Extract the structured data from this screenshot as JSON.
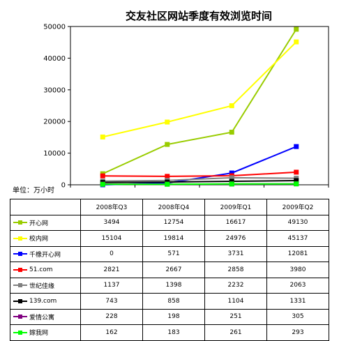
{
  "chart_data": {
    "type": "line",
    "title": "交友社区网站季度有效浏览时间",
    "unit_label": "单位：万小时",
    "categories": [
      "2008年Q3",
      "2008年Q4",
      "2009年Q1",
      "2009年Q2"
    ],
    "ylim": [
      0,
      50000
    ],
    "yticks": [
      0,
      10000,
      20000,
      30000,
      40000,
      50000
    ],
    "grid": false,
    "legend_placement": "data-table-left",
    "series": [
      {
        "name": "开心网",
        "color": "#99cc00",
        "values": [
          3494,
          12754,
          16617,
          49130
        ]
      },
      {
        "name": "校内网",
        "color": "#ffff00",
        "values": [
          15104,
          19814,
          24976,
          45137
        ]
      },
      {
        "name": "千橡开心网",
        "color": "#0000ff",
        "values": [
          0,
          571,
          3731,
          12081
        ]
      },
      {
        "name": "51.com",
        "color": "#ff0000",
        "values": [
          2821,
          2667,
          2858,
          3980
        ]
      },
      {
        "name": "世纪佳缘",
        "color": "#808080",
        "values": [
          1137,
          1398,
          2232,
          2063
        ]
      },
      {
        "name": "139.com",
        "color": "#000000",
        "values": [
          743,
          858,
          1104,
          1331
        ]
      },
      {
        "name": "爱情公寓",
        "color": "#800080",
        "values": [
          228,
          198,
          251,
          305
        ]
      },
      {
        "name": "嫁我网",
        "color": "#00ff00",
        "values": [
          162,
          183,
          261,
          293
        ]
      }
    ]
  }
}
